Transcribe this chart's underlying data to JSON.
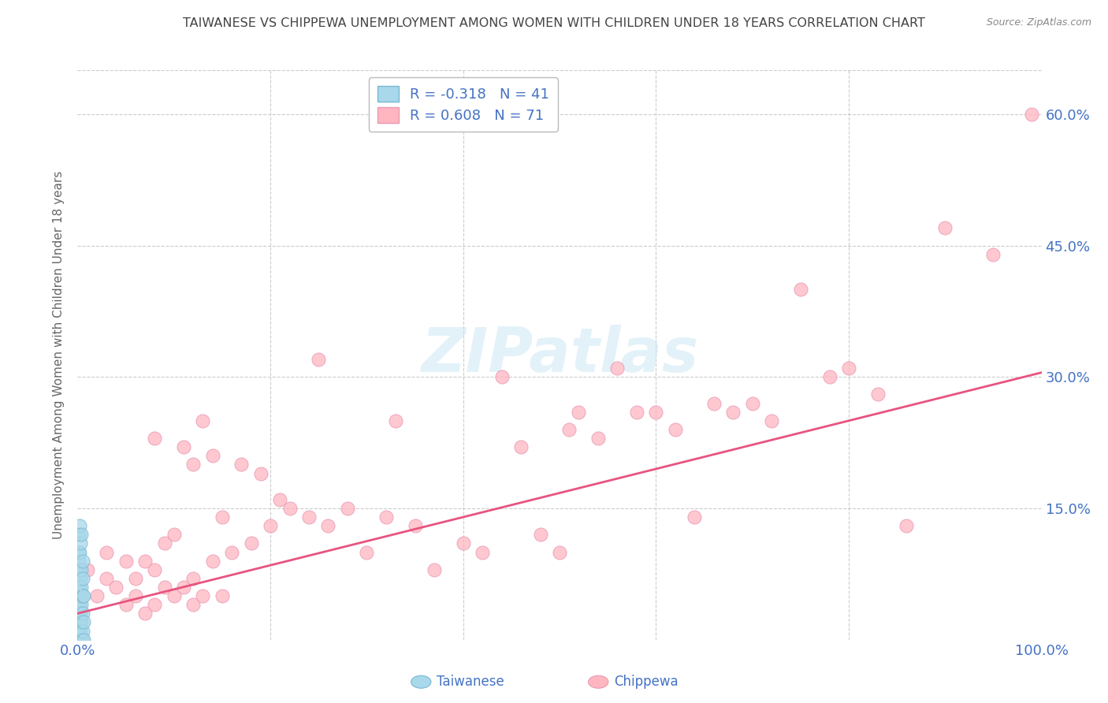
{
  "title": "TAIWANESE VS CHIPPEWA UNEMPLOYMENT AMONG WOMEN WITH CHILDREN UNDER 18 YEARS CORRELATION CHART",
  "source": "Source: ZipAtlas.com",
  "ylabel": "Unemployment Among Women with Children Under 18 years",
  "ytick_labels": [
    "15.0%",
    "30.0%",
    "45.0%",
    "60.0%"
  ],
  "ytick_values": [
    0.15,
    0.3,
    0.45,
    0.6
  ],
  "xlim": [
    0.0,
    1.0
  ],
  "ylim": [
    0.0,
    0.65
  ],
  "legend_taiwanese_R": "-0.318",
  "legend_taiwanese_N": "41",
  "legend_chippewa_R": "0.608",
  "legend_chippewa_N": "71",
  "taiwanese_color": "#A8D8EA",
  "chippewa_color": "#FFB6C1",
  "taiwanese_edge_color": "#7ab8d4",
  "chippewa_edge_color": "#e899b4",
  "taiwanese_line_color": "#A8D8EA",
  "chippewa_line_color": "#E75480",
  "watermark_color": "#C8E6F5",
  "background_color": "#FFFFFF",
  "title_color": "#444444",
  "source_color": "#888888",
  "axis_label_color": "#4472C4",
  "tick_label_color": "#4472C4",
  "ylabel_color": "#666666",
  "grid_color": "#CCCCCC",
  "taiwanese_scatter": {
    "x": [
      0.001,
      0.001,
      0.001,
      0.001,
      0.001,
      0.001,
      0.001,
      0.001,
      0.001,
      0.001,
      0.001,
      0.001,
      0.002,
      0.002,
      0.002,
      0.002,
      0.002,
      0.002,
      0.002,
      0.002,
      0.003,
      0.003,
      0.003,
      0.003,
      0.003,
      0.003,
      0.004,
      0.004,
      0.004,
      0.004,
      0.004,
      0.004,
      0.005,
      0.005,
      0.005,
      0.005,
      0.005,
      0.005,
      0.006,
      0.006,
      0.006
    ],
    "y": [
      0.0,
      0.01,
      0.02,
      0.03,
      0.04,
      0.05,
      0.06,
      0.07,
      0.08,
      0.09,
      0.1,
      0.12,
      0.0,
      0.01,
      0.02,
      0.04,
      0.06,
      0.08,
      0.1,
      0.13,
      0.0,
      0.01,
      0.03,
      0.05,
      0.07,
      0.11,
      0.0,
      0.02,
      0.04,
      0.06,
      0.08,
      0.12,
      0.0,
      0.01,
      0.03,
      0.05,
      0.07,
      0.09,
      0.0,
      0.02,
      0.05
    ]
  },
  "chippewa_scatter": {
    "x": [
      0.01,
      0.02,
      0.03,
      0.03,
      0.04,
      0.05,
      0.05,
      0.06,
      0.06,
      0.07,
      0.07,
      0.08,
      0.08,
      0.08,
      0.09,
      0.09,
      0.1,
      0.1,
      0.11,
      0.11,
      0.12,
      0.12,
      0.12,
      0.13,
      0.13,
      0.14,
      0.14,
      0.15,
      0.15,
      0.16,
      0.17,
      0.18,
      0.19,
      0.2,
      0.21,
      0.22,
      0.24,
      0.25,
      0.26,
      0.28,
      0.3,
      0.32,
      0.33,
      0.35,
      0.37,
      0.4,
      0.42,
      0.44,
      0.46,
      0.48,
      0.5,
      0.51,
      0.52,
      0.54,
      0.56,
      0.58,
      0.6,
      0.62,
      0.64,
      0.66,
      0.68,
      0.7,
      0.72,
      0.75,
      0.78,
      0.8,
      0.83,
      0.86,
      0.9,
      0.95,
      0.99
    ],
    "y": [
      0.08,
      0.05,
      0.07,
      0.1,
      0.06,
      0.04,
      0.09,
      0.05,
      0.07,
      0.03,
      0.09,
      0.04,
      0.08,
      0.23,
      0.06,
      0.11,
      0.05,
      0.12,
      0.06,
      0.22,
      0.04,
      0.07,
      0.2,
      0.05,
      0.25,
      0.09,
      0.21,
      0.05,
      0.14,
      0.1,
      0.2,
      0.11,
      0.19,
      0.13,
      0.16,
      0.15,
      0.14,
      0.32,
      0.13,
      0.15,
      0.1,
      0.14,
      0.25,
      0.13,
      0.08,
      0.11,
      0.1,
      0.3,
      0.22,
      0.12,
      0.1,
      0.24,
      0.26,
      0.23,
      0.31,
      0.26,
      0.26,
      0.24,
      0.14,
      0.27,
      0.26,
      0.27,
      0.25,
      0.4,
      0.3,
      0.31,
      0.28,
      0.13,
      0.47,
      0.44,
      0.6
    ]
  },
  "taiwanese_regression": {
    "x_start": 0.0,
    "x_end": 0.008,
    "y_start": 0.065,
    "y_end": 0.045
  },
  "chippewa_regression": {
    "x_start": 0.0,
    "x_end": 1.0,
    "y_start": 0.03,
    "y_end": 0.305
  }
}
